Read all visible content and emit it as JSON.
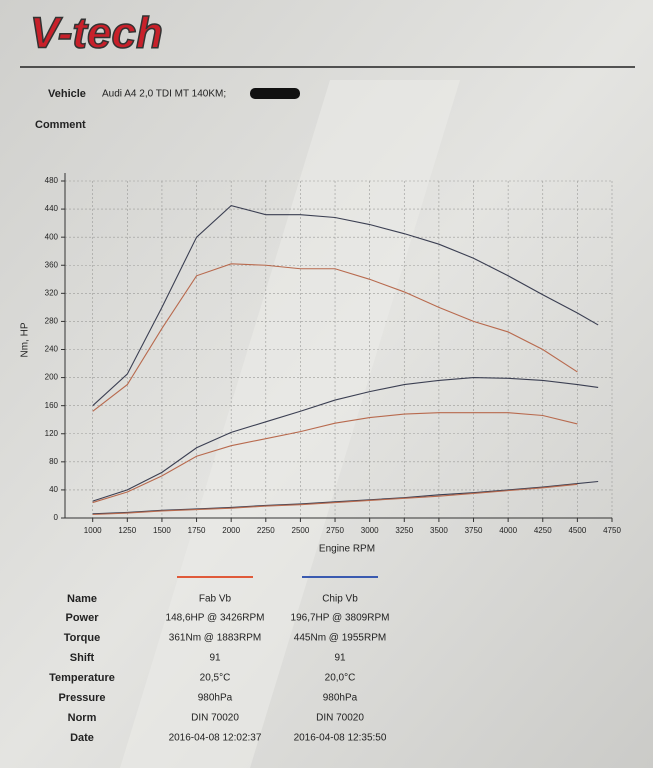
{
  "header": {
    "logo": "V-tech",
    "vehicle_label": "Vehicle",
    "vehicle_value": "Audi A4 2,0 TDI MT 140KM;",
    "comment_label": "Comment"
  },
  "chart_data": {
    "type": "line",
    "x_label": "Engine RPM",
    "y_label": "Nm, HP",
    "x": [
      1000,
      1250,
      1500,
      1750,
      2000,
      2250,
      2500,
      2750,
      3000,
      3250,
      3500,
      3750,
      4000,
      4250,
      4500,
      4650
    ],
    "series": [
      {
        "color": "#3b3f52",
        "values": [
          160,
          205,
          300,
          400,
          445,
          432,
          432,
          428,
          418,
          405,
          390,
          370,
          345,
          318,
          292,
          275
        ]
      },
      {
        "color": "#b86a4e",
        "values": [
          152,
          190,
          270,
          345,
          362,
          360,
          355,
          355,
          340,
          322,
          300,
          280,
          265,
          240,
          208,
          null
        ]
      },
      {
        "color": "#3b3f52",
        "values": [
          24,
          40,
          65,
          100,
          122,
          137,
          152,
          168,
          180,
          190,
          196,
          200,
          199,
          196,
          190,
          186
        ]
      },
      {
        "color": "#b86a4e",
        "values": [
          22,
          37,
          60,
          88,
          103,
          113,
          123,
          135,
          143,
          148,
          150,
          150,
          150,
          146,
          134,
          null
        ]
      },
      {
        "color": "#3b3f52",
        "values": [
          6,
          8,
          11,
          13,
          15,
          18,
          20,
          23,
          26,
          29,
          33,
          36,
          40,
          44,
          49,
          52
        ]
      },
      {
        "color": "#b86a4e",
        "values": [
          5,
          7,
          10,
          12,
          14,
          17,
          19,
          22,
          25,
          28,
          31,
          35,
          39,
          43,
          48,
          null
        ]
      }
    ],
    "xlim": [
      800,
      4750
    ],
    "xticks": [
      1000,
      1250,
      1500,
      1750,
      2000,
      2250,
      2500,
      2750,
      3000,
      3250,
      3500,
      3750,
      4000,
      4250,
      4500,
      4750
    ],
    "ylim": [
      0,
      480
    ],
    "yticks": [
      0,
      40,
      80,
      120,
      160,
      200,
      240,
      280,
      320,
      360,
      400,
      440,
      480
    ],
    "grid": true
  },
  "table": {
    "header": [
      "Name",
      "Fab Vb",
      "Chip Vb"
    ],
    "colors": [
      "#e05a3a",
      "#3a5ab0"
    ],
    "rows": [
      [
        "Power",
        "148,6HP @  3426RPM",
        "196,7HP @  3809RPM"
      ],
      [
        "Torque",
        "361Nm @ 1883RPM",
        "445Nm @ 1955RPM"
      ],
      [
        "Shift",
        "91",
        "91"
      ],
      [
        "Temperature",
        "20,5°C",
        "20,0°C"
      ],
      [
        "Pressure",
        "980hPa",
        "980hPa"
      ],
      [
        "Norm",
        "DIN 70020",
        "DIN 70020"
      ],
      [
        "Date",
        "2016-04-08 12:02:37",
        "2016-04-08 12:35:50"
      ]
    ]
  }
}
